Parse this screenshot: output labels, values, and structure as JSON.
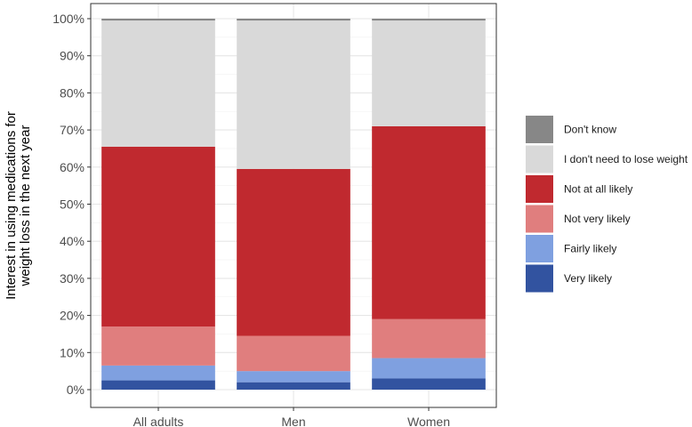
{
  "chart_data": {
    "type": "bar",
    "stacked": true,
    "categories": [
      "All adults",
      "Men",
      "Women"
    ],
    "ylabel": "Interest in using medications for weight loss in the next year",
    "ylabel_lines": [
      "Interest in using medications for",
      "weight loss in the next year"
    ],
    "ylim": [
      0,
      100
    ],
    "yticks": [
      "0%",
      "10%",
      "20%",
      "30%",
      "40%",
      "50%",
      "60%",
      "70%",
      "80%",
      "90%",
      "100%"
    ],
    "grid": true,
    "legend_position": "right",
    "series": [
      {
        "name": "Very likely",
        "color": "#3253A0",
        "values": [
          2.5,
          2,
          3
        ]
      },
      {
        "name": "Fairly likely",
        "color": "#7FA0E0",
        "values": [
          4,
          3,
          5.5
        ]
      },
      {
        "name": "Not very likely",
        "color": "#E07E7E",
        "values": [
          10.5,
          9.5,
          10.5
        ]
      },
      {
        "name": "Not at all likely",
        "color": "#C0292F",
        "values": [
          48.5,
          45,
          52
        ]
      },
      {
        "name": "I don't need to lose weight",
        "color": "#D9D9D9",
        "values": [
          34,
          40,
          28.5
        ]
      },
      {
        "name": "Don't know",
        "color": "#878787",
        "values": [
          0.5,
          0.5,
          0.5
        ]
      }
    ]
  }
}
